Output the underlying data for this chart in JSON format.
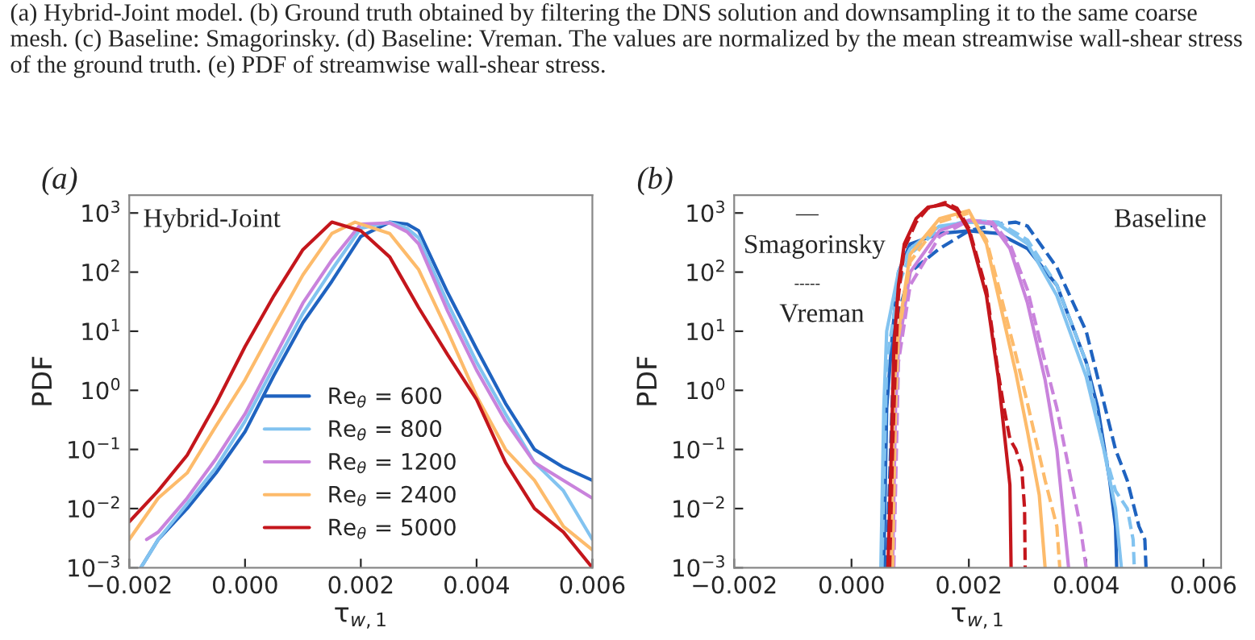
{
  "chart_data": [
    {
      "type": "line",
      "xlabel": "τ$_{w,1}$",
      "ylabel": "PDF",
      "log": "y",
      "legend": "bottom",
      "annotations": [
        "(a) Hybrid-Joint model. (b) Ground truth obtained by filtering the DNS solution and downsampling it to the same coarse mesh. (c) Baseline: Smagorinsky. (d) Baseline: Vreman. The values are normalized by the mean streamwise wall-shear stress of the ground truth. (e) PDF of streamwise wall-shear stress.",
        "(a)",
        "Hybrid-Joint"
      ],
      "xlim": [
        -0.002,
        0.006
      ],
      "ylim": [
        0.001,
        2000
      ],
      "xticks": [
        {
          "value": -0.002,
          "label": "−0.002"
        },
        {
          "value": 0.0,
          "label": "0.000"
        },
        {
          "value": 0.002,
          "label": "0.002"
        },
        {
          "value": 0.004,
          "label": "0.004"
        },
        {
          "value": 0.006,
          "label": "0.006"
        }
      ],
      "yticks": [
        {
          "value": 0.001,
          "label": "10$^{−3}$"
        },
        {
          "value": 0.01,
          "label": "10$^{−2}$"
        },
        {
          "value": 0.1,
          "label": "10$^{−1}$"
        },
        {
          "value": 1,
          "label": "10$^{0}$"
        },
        {
          "value": 10,
          "label": "10$^{1}$"
        },
        {
          "value": 100,
          "label": "10$^{2}$"
        },
        {
          "value": 1000,
          "label": "10$^{3}$"
        }
      ],
      "series": [
        {
          "name": "Re$_{θ}$ = 600",
          "color": "#1f63c0",
          "x": [
            -0.0018,
            -0.0015,
            -0.001,
            -0.0005,
            0,
            0.0005,
            0.001,
            0.0015,
            0.002,
            0.0025,
            0.0028,
            0.003,
            0.0035,
            0.004,
            0.0045,
            0.005,
            0.0055,
            0.006
          ],
          "values": [
            0.001,
            0.003,
            0.01,
            0.04,
            0.2,
            1.8,
            14,
            70,
            400,
            700,
            650,
            500,
            45,
            5,
            0.6,
            0.1,
            0.05,
            0.03
          ]
        },
        {
          "name": "Re$_{θ}$ = 800",
          "color": "#82c3f0",
          "x": [
            -0.0018,
            -0.0015,
            -0.001,
            -0.0005,
            0,
            0.0005,
            0.001,
            0.0015,
            0.002,
            0.0025,
            0.0028,
            0.003,
            0.0035,
            0.004,
            0.0045,
            0.005,
            0.0055,
            0.006
          ],
          "values": [
            0.001,
            0.003,
            0.012,
            0.05,
            0.3,
            2.5,
            20,
            110,
            550,
            700,
            550,
            380,
            30,
            3,
            0.4,
            0.06,
            0.02,
            0.003
          ]
        },
        {
          "name": "Re$_{θ}$ = 1200",
          "color": "#c983dc",
          "x": [
            -0.0017,
            -0.0015,
            -0.001,
            -0.0005,
            0,
            0.0005,
            0.001,
            0.0015,
            0.002,
            0.0025,
            0.0028,
            0.003,
            0.0035,
            0.004,
            0.0045,
            0.005,
            0.0055,
            0.006
          ],
          "values": [
            0.003,
            0.004,
            0.015,
            0.07,
            0.4,
            3.5,
            30,
            160,
            650,
            680,
            480,
            300,
            22,
            2.2,
            0.3,
            0.06,
            0.03,
            0.015
          ]
        },
        {
          "name": "Re$_{θ}$ = 2400",
          "color": "#fdbb6b",
          "x": [
            -0.002,
            -0.0015,
            -0.001,
            -0.0005,
            0,
            0.0005,
            0.001,
            0.0015,
            0.0019,
            0.0025,
            0.003,
            0.0035,
            0.004,
            0.0045,
            0.005,
            0.0055,
            0.006
          ],
          "values": [
            0.003,
            0.015,
            0.04,
            0.25,
            1.5,
            12,
            90,
            450,
            700,
            450,
            110,
            10,
            0.8,
            0.1,
            0.03,
            0.005,
            0.002
          ]
        },
        {
          "name": "Re$_{θ}$ = 5000",
          "color": "#c4161c",
          "x": [
            -0.002,
            -0.0015,
            -0.001,
            -0.0005,
            0,
            0.0005,
            0.001,
            0.0015,
            0.002,
            0.0025,
            0.003,
            0.0035,
            0.004,
            0.0045,
            0.005,
            0.0055,
            0.006
          ],
          "values": [
            0.006,
            0.02,
            0.08,
            0.6,
            5.5,
            40,
            240,
            700,
            500,
            180,
            25,
            4,
            0.7,
            0.06,
            0.01,
            0.004,
            0.001
          ]
        }
      ]
    },
    {
      "type": "line",
      "xlabel": "τ$_{w,1}$",
      "ylabel": "PDF",
      "log": "y",
      "annotations": [
        "(b)",
        "Baseline",
        "—",
        "Smagorinsky",
        "-----",
        "Vreman"
      ],
      "xlim": [
        -0.002,
        0.0063
      ],
      "ylim": [
        0.001,
        2000
      ],
      "xticks": [
        {
          "value": -0.002,
          "label": "−0.002"
        },
        {
          "value": 0.0,
          "label": "0.000"
        },
        {
          "value": 0.002,
          "label": "0.002"
        },
        {
          "value": 0.004,
          "label": "0.004"
        },
        {
          "value": 0.006,
          "label": "0.006"
        }
      ],
      "yticks": [
        {
          "value": 0.001,
          "label": "10$^{−3}$"
        },
        {
          "value": 0.01,
          "label": "10$^{−2}$"
        },
        {
          "value": 0.1,
          "label": "10$^{−1}$"
        },
        {
          "value": 1,
          "label": "10$^{0}$"
        },
        {
          "value": 10,
          "label": "10$^{1}$"
        },
        {
          "value": 100,
          "label": "10$^{2}$"
        },
        {
          "value": 1000,
          "label": "10$^{3}$"
        }
      ],
      "series": [
        {
          "color": "#1f63c0",
          "line_style": "solid",
          "x": [
            0.00055,
            0.0006,
            0.0007,
            0.0008,
            0.001,
            0.0015,
            0.002,
            0.0025,
            0.003,
            0.0035,
            0.004,
            0.0042,
            0.0044,
            0.0045,
            0.00452
          ],
          "values": [
            0.001,
            0.5,
            10,
            100,
            300,
            450,
            500,
            450,
            250,
            60,
            3,
            0.5,
            0.03,
            0.005,
            0.001
          ]
        },
        {
          "color": "#1f63c0",
          "line_style": "dashed",
          "x": [
            0.0006,
            0.0007,
            0.0008,
            0.001,
            0.0015,
            0.002,
            0.0025,
            0.0028,
            0.003,
            0.0035,
            0.004,
            0.0045,
            0.0047,
            0.0049,
            0.005,
            0.00502
          ],
          "values": [
            0.001,
            1,
            20,
            100,
            250,
            500,
            650,
            700,
            600,
            120,
            10,
            0.1,
            0.03,
            0.005,
            0.003,
            0.001
          ]
        },
        {
          "color": "#82c3f0",
          "line_style": "solid",
          "x": [
            0.0005,
            0.00055,
            0.0006,
            0.0008,
            0.001,
            0.0015,
            0.002,
            0.0025,
            0.003,
            0.0035,
            0.004,
            0.0043,
            0.0045,
            0.0046
          ],
          "values": [
            0.001,
            0.5,
            10,
            100,
            250,
            600,
            700,
            650,
            300,
            40,
            1.7,
            0.1,
            0.01,
            0.001
          ]
        },
        {
          "color": "#82c3f0",
          "line_style": "dashed",
          "x": [
            0.00052,
            0.0006,
            0.0008,
            0.001,
            0.0015,
            0.002,
            0.0025,
            0.003,
            0.0035,
            0.004,
            0.0043,
            0.0045,
            0.0047,
            0.0048,
            0.00482
          ],
          "values": [
            0.001,
            3,
            60,
            200,
            550,
            750,
            700,
            350,
            60,
            3,
            0.1,
            0.02,
            0.01,
            0.003,
            0.001
          ]
        },
        {
          "color": "#c983dc",
          "line_style": "solid",
          "x": [
            0.0007,
            0.00075,
            0.0008,
            0.001,
            0.0015,
            0.002,
            0.0024,
            0.0027,
            0.003,
            0.0033,
            0.0035,
            0.0036,
            0.0037
          ],
          "values": [
            0.001,
            0.5,
            5,
            100,
            500,
            750,
            650,
            250,
            30,
            1.5,
            0.1,
            0.01,
            0.001
          ]
        },
        {
          "color": "#c983dc",
          "line_style": "dashed",
          "x": [
            0.00072,
            0.0008,
            0.001,
            0.0015,
            0.002,
            0.0024,
            0.0027,
            0.003,
            0.0033,
            0.0035,
            0.0037,
            0.0039,
            0.004
          ],
          "values": [
            0.001,
            3,
            60,
            400,
            750,
            700,
            300,
            50,
            3,
            0.5,
            0.05,
            0.005,
            0.001
          ]
        },
        {
          "color": "#fdbb6b",
          "line_style": "solid",
          "x": [
            0.00068,
            0.00072,
            0.0008,
            0.001,
            0.0015,
            0.002,
            0.0023,
            0.0025,
            0.0028,
            0.003,
            0.0032,
            0.0033
          ],
          "values": [
            0.001,
            1,
            10,
            200,
            800,
            1100,
            300,
            40,
            2,
            0.2,
            0.017,
            0.001
          ]
        },
        {
          "color": "#fdbb6b",
          "line_style": "dashed",
          "x": [
            0.0007,
            0.00075,
            0.0008,
            0.001,
            0.0015,
            0.002,
            0.0023,
            0.0025,
            0.0028,
            0.003,
            0.0033,
            0.0035,
            0.00355
          ],
          "values": [
            0.001,
            0.5,
            8,
            150,
            700,
            1000,
            350,
            60,
            4,
            0.6,
            0.03,
            0.005,
            0.001
          ]
        },
        {
          "color": "#c4161c",
          "line_style": "solid",
          "x": [
            0.00062,
            0.00068,
            0.00072,
            0.0008,
            0.0009,
            0.0011,
            0.0013,
            0.0016,
            0.0018,
            0.002,
            0.0023,
            0.0025,
            0.0027,
            0.00272
          ],
          "values": [
            0.001,
            0.1,
            5,
            60,
            300,
            800,
            1250,
            1400,
            1100,
            500,
            40,
            1.7,
            0.025,
            0.001
          ]
        },
        {
          "color": "#c4161c",
          "line_style": "dashed",
          "x": [
            0.00065,
            0.0007,
            0.00075,
            0.0008,
            0.0009,
            0.0011,
            0.0013,
            0.0016,
            0.0018,
            0.002,
            0.0023,
            0.0025,
            0.0026,
            0.0027,
            0.0028,
            0.0029,
            0.00295,
            0.00296
          ],
          "values": [
            0.001,
            0.1,
            3,
            40,
            250,
            700,
            1200,
            1500,
            1200,
            550,
            50,
            2,
            0.5,
            0.15,
            0.1,
            0.05,
            0.01,
            0.001
          ]
        }
      ]
    }
  ]
}
